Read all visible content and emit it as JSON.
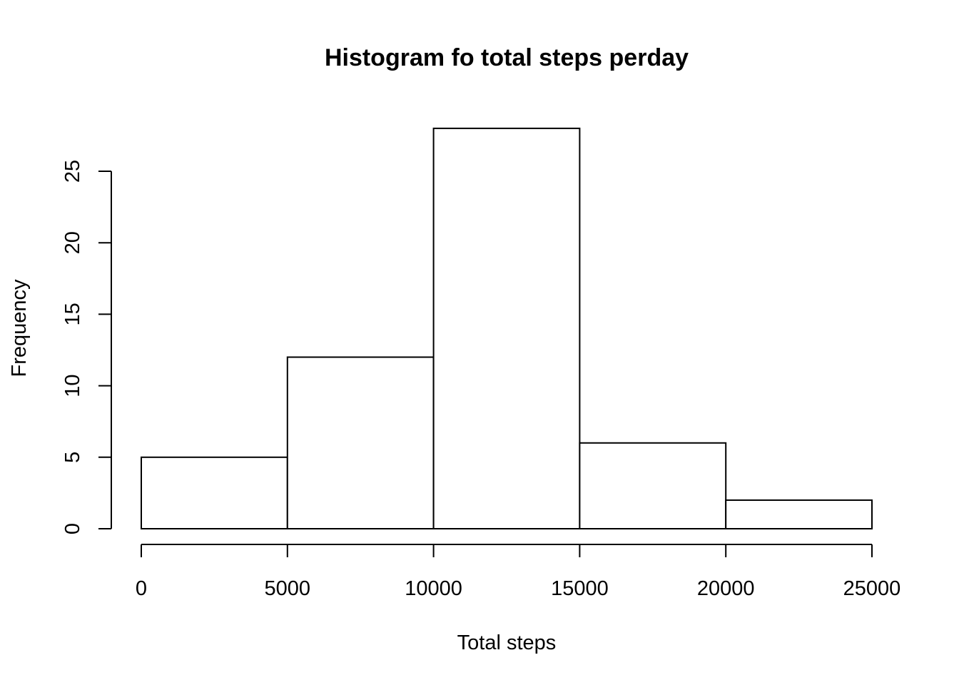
{
  "chart_data": {
    "type": "bar",
    "title": "Histogram fo total steps perday",
    "xlabel": "Total steps",
    "ylabel": "Frequency",
    "bins": [
      {
        "start": 0,
        "end": 5000,
        "count": 5
      },
      {
        "start": 5000,
        "end": 10000,
        "count": 12
      },
      {
        "start": 10000,
        "end": 15000,
        "count": 28
      },
      {
        "start": 15000,
        "end": 20000,
        "count": 6
      },
      {
        "start": 20000,
        "end": 25000,
        "count": 2
      }
    ],
    "xlim": [
      0,
      25000
    ],
    "ylim": [
      0,
      28
    ],
    "x_ticks": [
      0,
      5000,
      10000,
      15000,
      20000,
      25000
    ],
    "x_tick_labels": [
      "0",
      "5000",
      "10000",
      "15000",
      "20000",
      "25000"
    ],
    "y_ticks": [
      0,
      5,
      10,
      15,
      20,
      25
    ],
    "y_tick_labels": [
      "0",
      "5",
      "10",
      "15",
      "20",
      "25"
    ],
    "grid": false,
    "legend": "none"
  }
}
